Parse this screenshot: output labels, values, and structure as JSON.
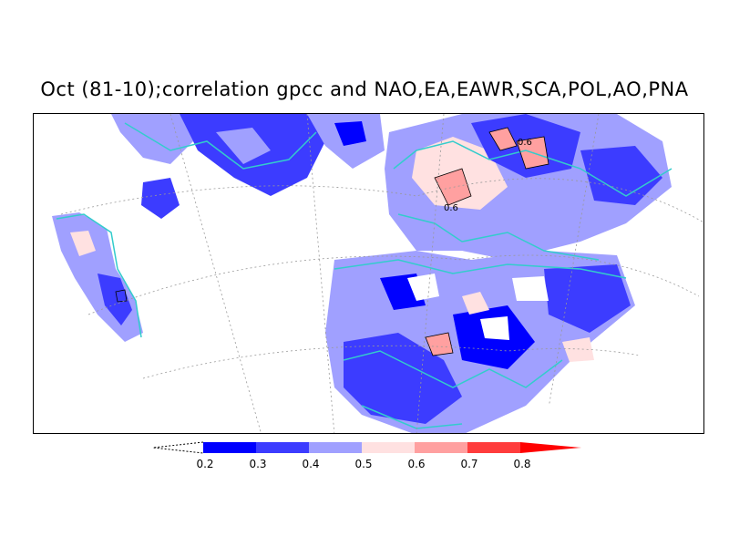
{
  "title": "Oct (81-10);correlation gpcc and NAO,EA,EAWR,SCA,POL,AO,PNA",
  "map_labels": [
    "0.6",
    "0.6"
  ],
  "legend": {
    "levels": [
      "0.2",
      "0.3",
      "0.4",
      "0.5",
      "0.6",
      "0.7",
      "0.8"
    ],
    "colors": [
      "#0000ff",
      "#3c3cff",
      "#a0a0ff",
      "#ffe1e1",
      "#ffa0a0",
      "#ff3c3c",
      "#ff0000"
    ]
  },
  "colors": {
    "coast": "#33cccc",
    "grid": "#999999"
  }
}
